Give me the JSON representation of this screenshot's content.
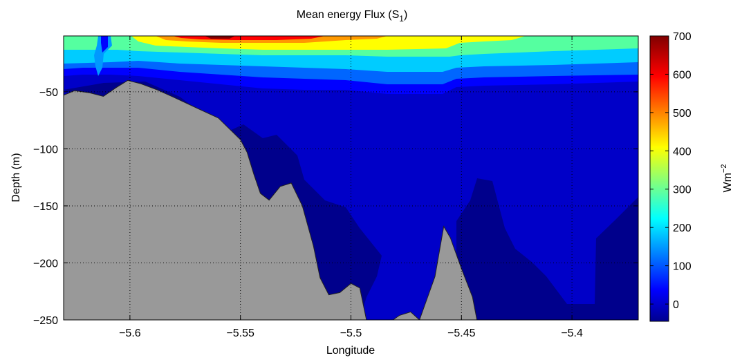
{
  "chart_data": {
    "type": "heatmap",
    "title": "Mean energy Flux (S",
    "title_subscript": "1",
    "title_suffix": ")",
    "xlabel": "Longitude",
    "ylabel": "Depth (m)",
    "colorbar_label": "Wm",
    "colorbar_label_sup": "−2",
    "xlim": [
      -5.63,
      -5.37
    ],
    "ylim": [
      -250,
      -1
    ],
    "clim": [
      -45,
      700
    ],
    "x_ticks": [
      {
        "value": -5.6,
        "label": "−5.6"
      },
      {
        "value": -5.55,
        "label": "−5.55"
      },
      {
        "value": -5.5,
        "label": "−5.5"
      },
      {
        "value": -5.45,
        "label": "−5.45"
      },
      {
        "value": -5.4,
        "label": "−5.4"
      }
    ],
    "y_ticks": [
      {
        "value": -50,
        "label": "−50"
      },
      {
        "value": -100,
        "label": "−100"
      },
      {
        "value": -150,
        "label": "−150"
      },
      {
        "value": -200,
        "label": "−200"
      },
      {
        "value": -250,
        "label": "−250"
      }
    ],
    "colorbar_ticks": [
      {
        "value": 0,
        "label": "0"
      },
      {
        "value": 100,
        "label": "100"
      },
      {
        "value": 200,
        "label": "200"
      },
      {
        "value": 300,
        "label": "300"
      },
      {
        "value": 400,
        "label": "400"
      },
      {
        "value": 500,
        "label": "500"
      },
      {
        "value": 600,
        "label": "600"
      },
      {
        "value": 700,
        "label": "700"
      }
    ],
    "grid": true,
    "colormap": "jet",
    "bathymetry_color": "#999999",
    "bathymetry": [
      [
        -5.63,
        -53
      ],
      [
        -5.625,
        -49
      ],
      [
        -5.618,
        -51
      ],
      [
        -5.612,
        -54
      ],
      [
        -5.606,
        -46
      ],
      [
        -5.601,
        -40
      ],
      [
        -5.595,
        -43
      ],
      [
        -5.588,
        -48
      ],
      [
        -5.58,
        -55
      ],
      [
        -5.57,
        -64
      ],
      [
        -5.56,
        -73
      ],
      [
        -5.55,
        -92
      ],
      [
        -5.547,
        -103
      ],
      [
        -5.544,
        -122
      ],
      [
        -5.541,
        -139
      ],
      [
        -5.537,
        -145
      ],
      [
        -5.532,
        -133
      ],
      [
        -5.527,
        -130
      ],
      [
        -5.522,
        -150
      ],
      [
        -5.517,
        -185
      ],
      [
        -5.514,
        -213
      ],
      [
        -5.51,
        -228
      ],
      [
        -5.505,
        -226
      ],
      [
        -5.5,
        -218
      ],
      [
        -5.496,
        -222
      ],
      [
        -5.493,
        -250
      ]
    ],
    "bathymetry_ridge": [
      [
        -5.481,
        -250
      ],
      [
        -5.478,
        -246
      ],
      [
        -5.473,
        -243
      ],
      [
        -5.469,
        -250
      ],
      [
        -5.462,
        -212
      ],
      [
        -5.458,
        -168
      ],
      [
        -5.455,
        -178
      ],
      [
        -5.45,
        -205
      ],
      [
        -5.445,
        -230
      ],
      [
        -5.443,
        -250
      ]
    ],
    "surface_core": {
      "longitude": -5.558,
      "value": 700
    }
  }
}
